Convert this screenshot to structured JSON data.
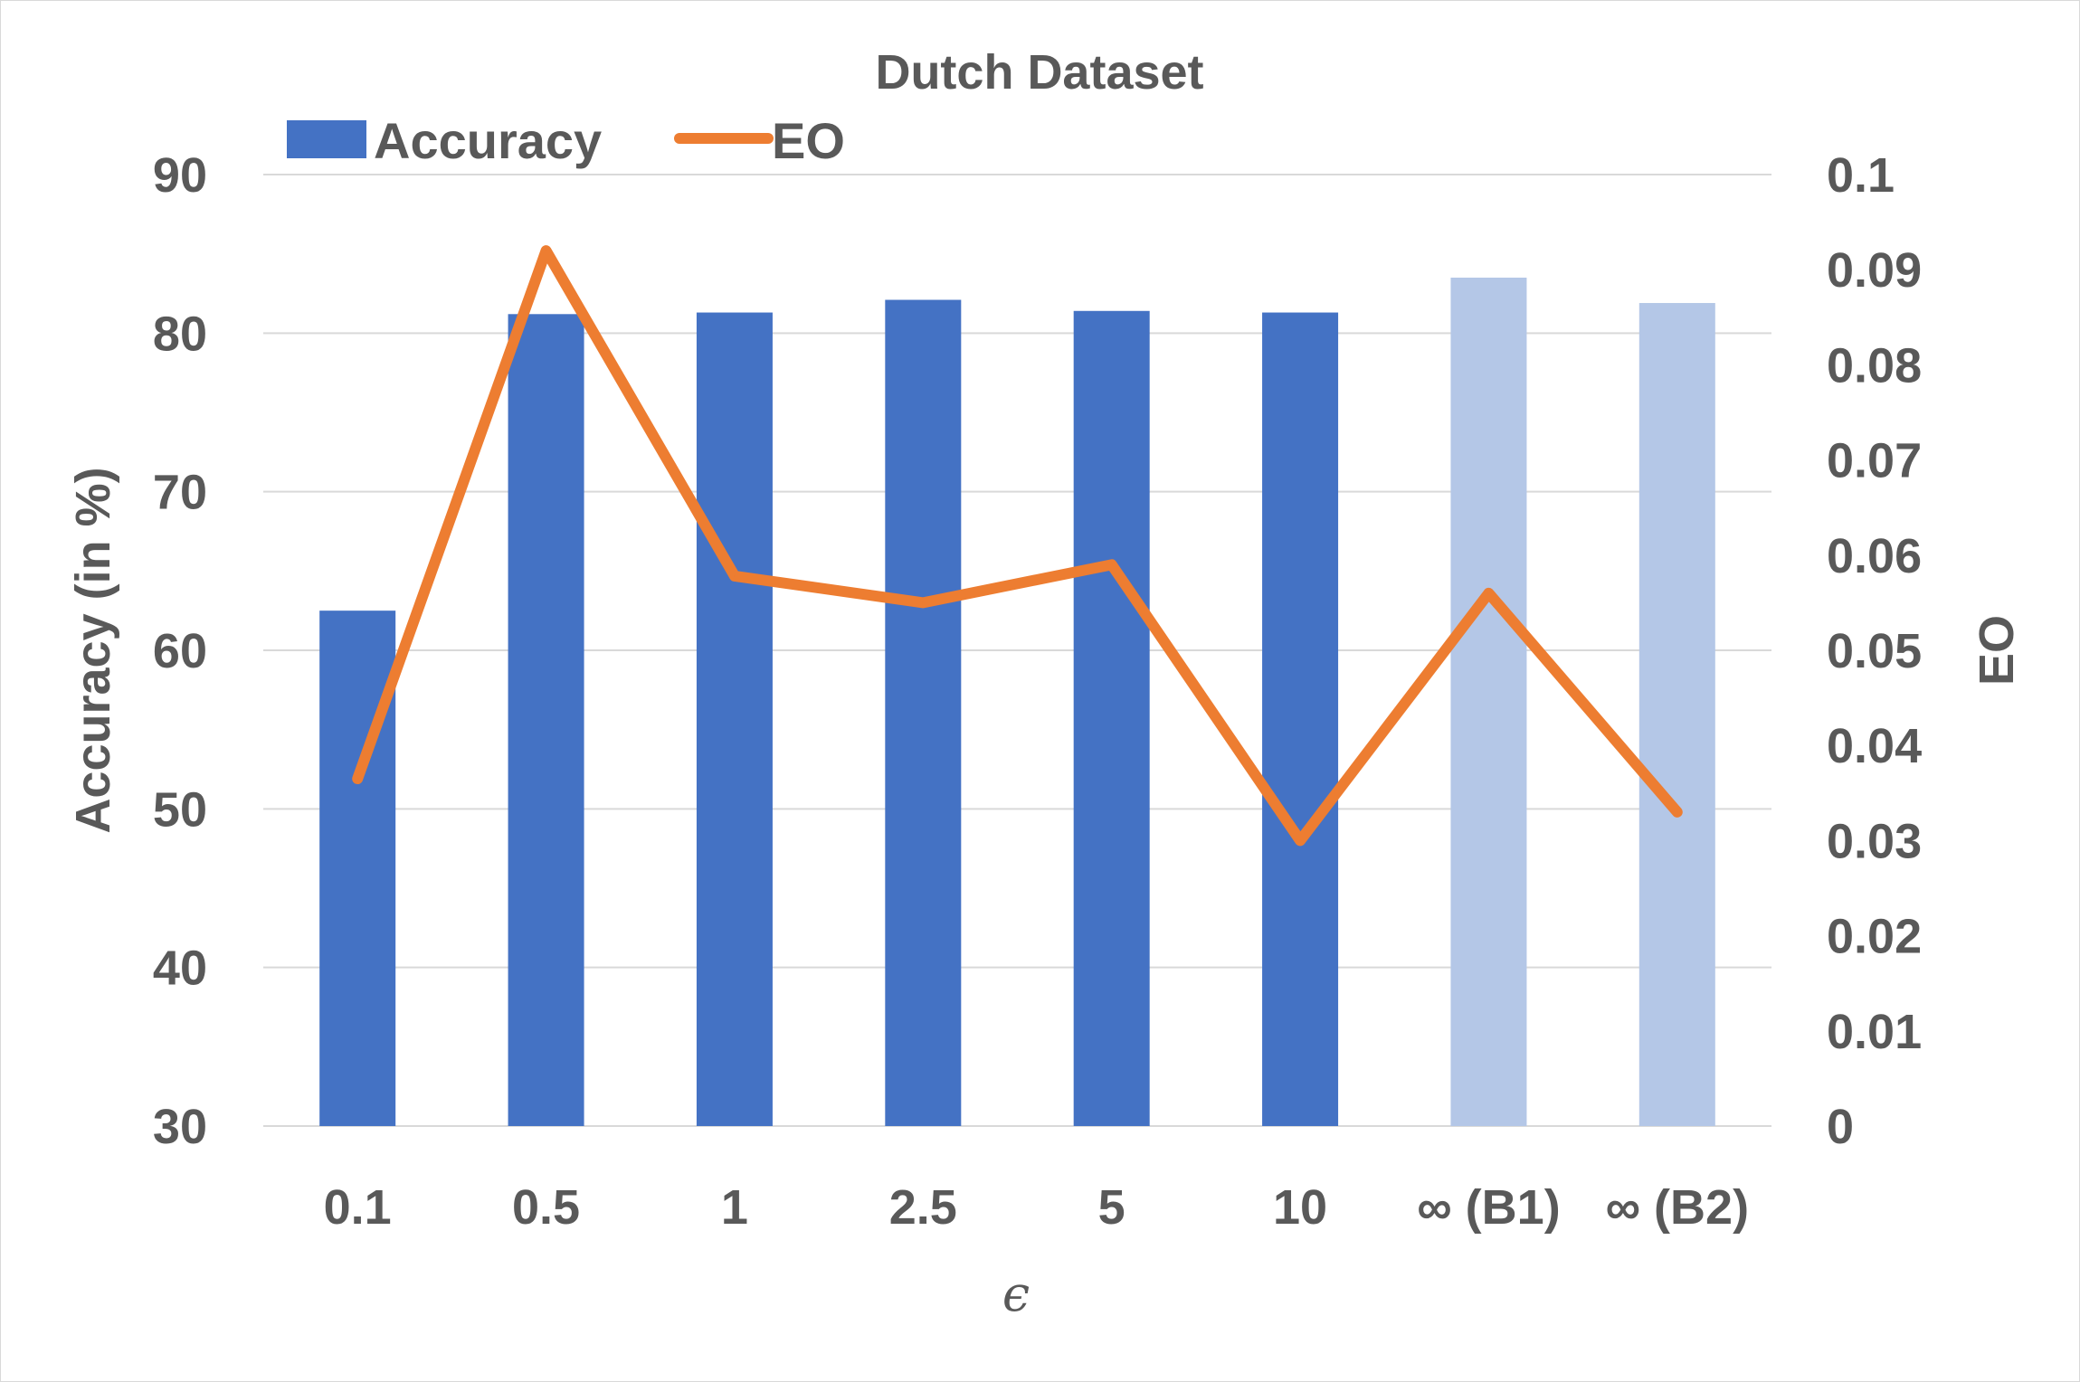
{
  "chart_data": {
    "type": "bar",
    "title": "Dutch Dataset",
    "categories": [
      "0.1",
      "0.5",
      "1",
      "2.5",
      "5",
      "10",
      "∞ (B1)",
      "∞ (B2)"
    ],
    "series": [
      {
        "name": "Accuracy",
        "kind": "bar",
        "axis": "left",
        "values": [
          62.5,
          81.2,
          81.3,
          82.1,
          81.4,
          81.3,
          83.5,
          81.9
        ],
        "colors": [
          "#4472c4",
          "#4472c4",
          "#4472c4",
          "#4472c4",
          "#4472c4",
          "#4472c4",
          "#b4c7e7",
          "#b4c7e7"
        ]
      },
      {
        "name": "EO",
        "kind": "line",
        "axis": "right",
        "color": "#ed7d31",
        "values": [
          0.0365,
          0.092,
          0.0578,
          0.055,
          0.059,
          0.03,
          0.056,
          0.033
        ]
      }
    ],
    "xlabel": "ϵ",
    "ylabel": "Accuracy (in %)",
    "ylabel_right": "EO",
    "ylim": [
      30,
      90
    ],
    "yticks": [
      "90",
      "80",
      "70",
      "60",
      "50",
      "40",
      "30"
    ],
    "ylim_right": [
      0,
      0.1
    ],
    "yticks_right": [
      "0.1",
      "0.09",
      "0.08",
      "0.07",
      "0.06",
      "0.05",
      "0.04",
      "0.03",
      "0.02",
      "0.01",
      "0"
    ],
    "grid": true,
    "legend": "top-left"
  }
}
